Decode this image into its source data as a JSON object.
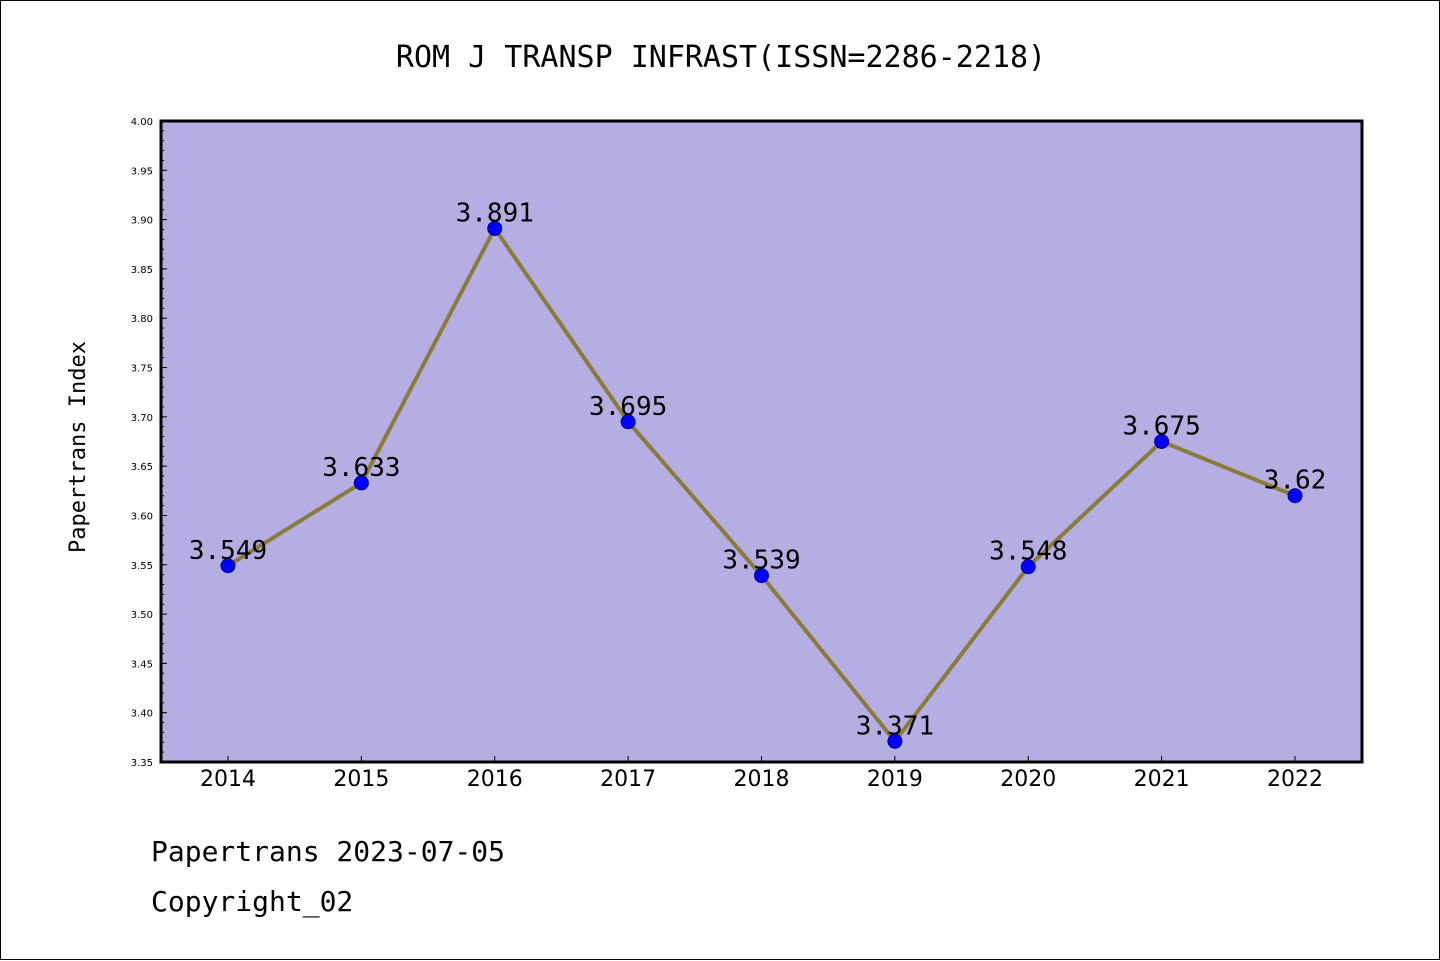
{
  "chart_data": {
    "type": "line",
    "title": "ROM J TRANSP INFRAST(ISSN=2286-2218)",
    "xlabel": "",
    "ylabel": "Papertrans Index",
    "categories": [
      "2014",
      "2015",
      "2016",
      "2017",
      "2018",
      "2019",
      "2020",
      "2021",
      "2022"
    ],
    "values": [
      3.549,
      3.633,
      3.891,
      3.695,
      3.539,
      3.371,
      3.548,
      3.675,
      3.62
    ],
    "data_labels": [
      "3.549",
      "3.633",
      "3.891",
      "3.695",
      "3.539",
      "3.371",
      "3.548",
      "3.675",
      "3.62"
    ],
    "ylim": [
      3.35,
      4.0
    ],
    "yticks": [
      "3.35",
      "3.40",
      "3.45",
      "3.50",
      "3.55",
      "3.60",
      "3.65",
      "3.70",
      "3.75",
      "3.80",
      "3.85",
      "3.90",
      "3.95",
      "4.00"
    ],
    "grid": false,
    "legend": "none",
    "colors": {
      "plot_background": "#b5aee2",
      "line": "#8b7b3a",
      "marker": "#0000ff",
      "marker_edge": "#00008b"
    }
  },
  "footer": {
    "date_line": "Papertrans 2023-07-05",
    "copyright_line": "Copyright_02"
  }
}
